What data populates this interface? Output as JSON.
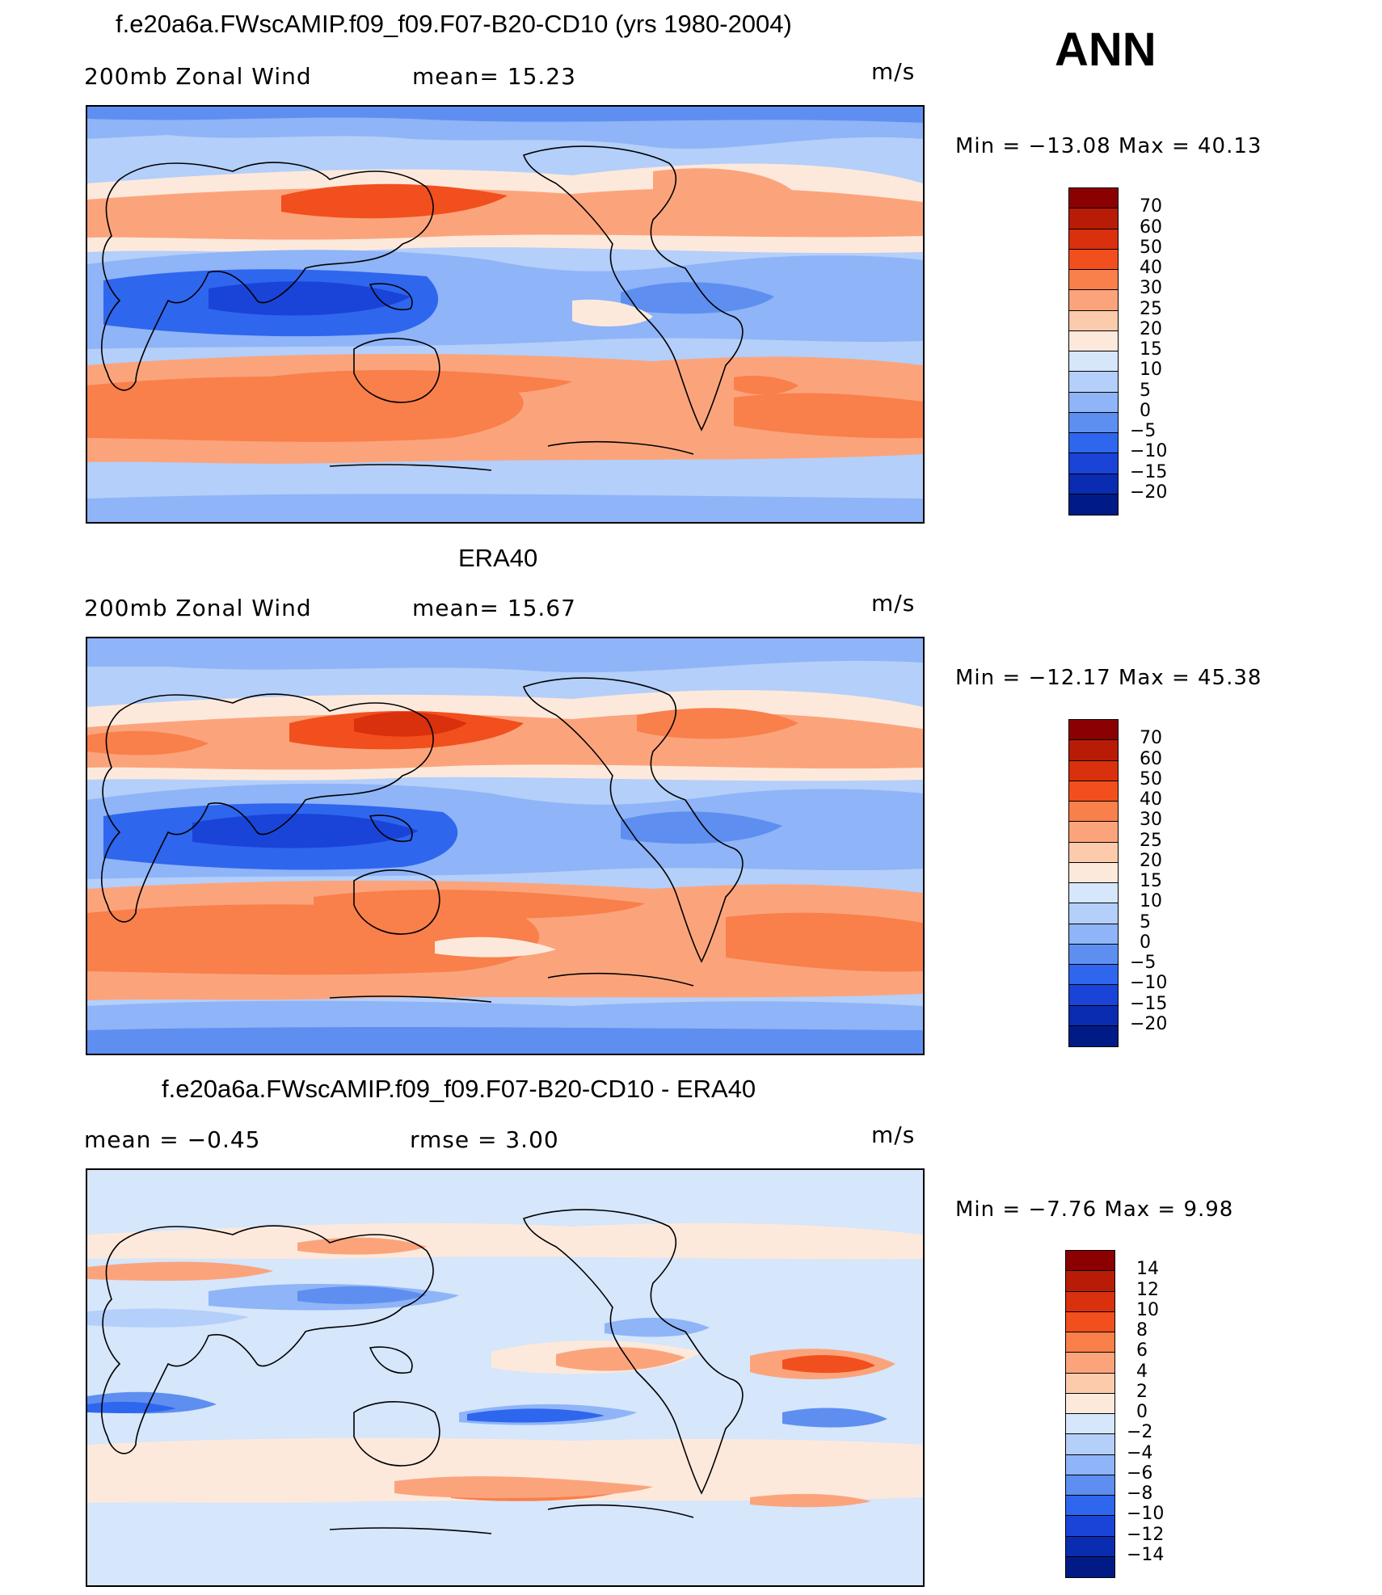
{
  "season": "ANN",
  "panels": [
    {
      "title": "f.e20a6a.FWscAMIP.f09_f09.F07-B20-CD10 (yrs 1980-2004)",
      "left_text": "200mb  Zonal  Wind",
      "center_text": "mean=   15.23",
      "units": "m/s",
      "min_text": "Min  =  −13.08  Max  =    40.13",
      "colorbar": {
        "levels": [
          "70",
          "60",
          "50",
          "40",
          "30",
          "25",
          "20",
          "15",
          "10",
          "5",
          "0",
          "−5",
          "−10",
          "−15",
          "−20"
        ],
        "colors": [
          "#8b0000",
          "#b81c06",
          "#d9300d",
          "#f24f1e",
          "#f97f4b",
          "#fba47c",
          "#fccbac",
          "#fde9dc",
          "#d6e6fb",
          "#b4cff9",
          "#8fb4f7",
          "#5e8ff0",
          "#2f66ee",
          "#1a44d8",
          "#0a2cb0",
          "#001b85"
        ]
      }
    },
    {
      "title": "ERA40",
      "left_text": "200mb  Zonal  Wind",
      "center_text": "mean=   15.67",
      "units": "m/s",
      "min_text": "Min  =  −12.17  Max  =    45.38",
      "colorbar": {
        "levels": [
          "70",
          "60",
          "50",
          "40",
          "30",
          "25",
          "20",
          "15",
          "10",
          "5",
          "0",
          "−5",
          "−10",
          "−15",
          "−20"
        ],
        "colors": [
          "#8b0000",
          "#b81c06",
          "#d9300d",
          "#f24f1e",
          "#f97f4b",
          "#fba47c",
          "#fccbac",
          "#fde9dc",
          "#d6e6fb",
          "#b4cff9",
          "#8fb4f7",
          "#5e8ff0",
          "#2f66ee",
          "#1a44d8",
          "#0a2cb0",
          "#001b85"
        ]
      }
    },
    {
      "title": "f.e20a6a.FWscAMIP.f09_f09.F07-B20-CD10 - ERA40",
      "left_text": "mean  =    −0.45",
      "center_text": "rmse  =     3.00",
      "units": "m/s",
      "min_text": "Min  =    −7.76  Max  =     9.98",
      "colorbar": {
        "levels": [
          "14",
          "12",
          "10",
          "8",
          "6",
          "4",
          "2",
          "0",
          "−2",
          "−4",
          "−6",
          "−8",
          "−10",
          "−12",
          "−14"
        ],
        "colors": [
          "#8b0000",
          "#b81c06",
          "#d9300d",
          "#f24f1e",
          "#f97f4b",
          "#fba47c",
          "#fccbac",
          "#fde9dc",
          "#d6e6fb",
          "#b4cff9",
          "#8fb4f7",
          "#5e8ff0",
          "#2f66ee",
          "#1a44d8",
          "#0a2cb0",
          "#001b85"
        ]
      }
    }
  ]
}
